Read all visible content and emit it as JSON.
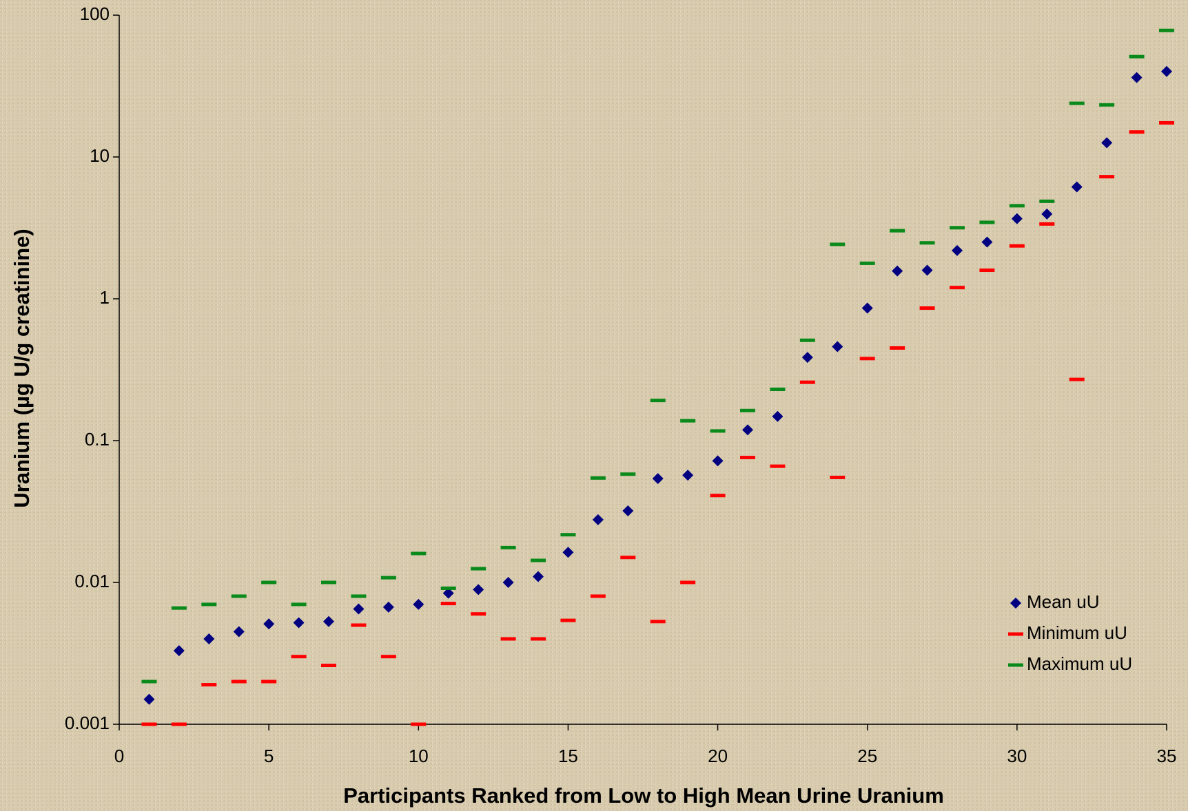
{
  "chart_data": {
    "type": "scatter",
    "x_label": "Participants Ranked from Low to High Mean Urine Uranium",
    "y_label": "Uranium (µg U/g creatinine)",
    "x": [
      1,
      2,
      3,
      4,
      5,
      6,
      7,
      8,
      9,
      10,
      11,
      12,
      13,
      14,
      15,
      16,
      17,
      18,
      19,
      20,
      21,
      22,
      23,
      24,
      25,
      26,
      27,
      28,
      29,
      30,
      31,
      32,
      33,
      34,
      35
    ],
    "series": [
      {
        "name": "Mean uU",
        "color": "#000080",
        "marker": "diamond",
        "values": [
          0.0015,
          0.0033,
          0.004,
          0.0045,
          0.0051,
          0.0052,
          0.0053,
          0.0065,
          0.0067,
          0.007,
          0.0084,
          0.0089,
          0.01,
          0.011,
          0.0163,
          0.0277,
          0.032,
          0.054,
          0.057,
          0.072,
          0.119,
          0.148,
          0.386,
          0.46,
          0.86,
          1.57,
          1.59,
          2.19,
          2.51,
          3.67,
          3.96,
          6.15,
          12.6,
          36.3,
          40.1
        ]
      },
      {
        "name": "Minimum uU",
        "color": "#ff0000",
        "marker": "dash",
        "values": [
          0.001,
          0.001,
          0.0019,
          0.002,
          0.002,
          0.003,
          0.0026,
          0.005,
          0.003,
          0.001,
          0.0071,
          0.006,
          0.004,
          0.004,
          0.0054,
          0.008,
          0.015,
          0.0053,
          0.01,
          0.041,
          0.076,
          0.066,
          0.258,
          0.055,
          0.379,
          0.45,
          0.86,
          1.2,
          1.59,
          2.36,
          3.37,
          0.27,
          7.26,
          15,
          17.4
        ]
      },
      {
        "name": "Maximum uU",
        "color": "#0a8a1a",
        "marker": "dash",
        "values": [
          0.002,
          0.0066,
          0.007,
          0.008,
          0.01,
          0.007,
          0.01,
          0.008,
          0.0108,
          0.016,
          0.0091,
          0.0125,
          0.0176,
          0.0143,
          0.0217,
          0.0545,
          0.058,
          0.192,
          0.138,
          0.117,
          0.163,
          0.23,
          0.51,
          2.42,
          1.78,
          3.02,
          2.48,
          3.17,
          3.46,
          4.53,
          4.87,
          23.9,
          23.3,
          51,
          78
        ]
      }
    ],
    "xlim": [
      0,
      35
    ],
    "xticks": [
      0,
      5,
      10,
      15,
      20,
      25,
      30,
      35
    ],
    "ylim": [
      0.001,
      100
    ],
    "yticks": [
      0.001,
      0.01,
      0.1,
      1,
      10,
      100
    ],
    "log_y": true,
    "grid": false,
    "legend": "lower right"
  }
}
